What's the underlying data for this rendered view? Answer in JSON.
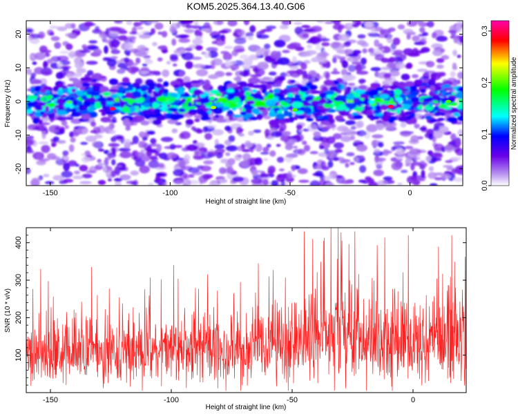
{
  "title": "KOM5.2025.364.13.40.G06",
  "chart_data": [
    {
      "type": "heatmap",
      "title": "KOM5.2025.364.13.40.G06",
      "xlabel": "Height of straight line (km)",
      "ylabel": "Frequency (Hz)",
      "xlim": [
        -160,
        22
      ],
      "ylim": [
        -25,
        24
      ],
      "xticks": [
        -150,
        -100,
        -50,
        0
      ],
      "yticks": [
        -20,
        -10,
        0,
        10,
        20
      ],
      "xtick_labels": [
        "-150",
        "-100",
        "-50",
        "0"
      ],
      "ytick_labels": [
        "-20",
        "-10",
        "0",
        "10",
        "20"
      ],
      "band_center_hz": 0,
      "band_halfwidth_hz": 5,
      "peaks": [
        {
          "x_km": -124,
          "y_hz": -2.2,
          "amplitude": 0.3
        },
        {
          "x_km": -8,
          "y_hz": -1.5,
          "amplitude": 0.3
        },
        {
          "x_km": -82,
          "y_hz": -1.8,
          "amplitude": 0.22
        },
        {
          "x_km": -48,
          "y_hz": -2.5,
          "amplitude": 0.2
        },
        {
          "x_km": 16,
          "y_hz": 0.0,
          "amplitude": 0.2
        }
      ],
      "colorbar": {
        "label": "Normalized spectral amplitude",
        "range": [
          0.0,
          0.32
        ],
        "ticks": [
          0.0,
          0.1,
          0.2,
          0.3
        ],
        "tick_labels": [
          "0.0",
          "0.1",
          "0.2",
          "0.3"
        ],
        "colors": [
          "#ffffff",
          "#b894f0",
          "#6a00e8",
          "#0000ff",
          "#00ffff",
          "#00ff00",
          "#ffff00",
          "#ff0000",
          "#ff00aa"
        ]
      }
    },
    {
      "type": "line",
      "xlabel": "Height of straight line (km)",
      "ylabel": "SNR (10 * v/v)",
      "xlim": [
        -160,
        22
      ],
      "ylim": [
        0,
        440
      ],
      "xticks": [
        -150,
        -100,
        -50,
        0
      ],
      "yticks": [
        100,
        200,
        300,
        400
      ],
      "xtick_labels": [
        "-150",
        "-100",
        "-50",
        "0"
      ],
      "ytick_labels": [
        "100",
        "200",
        "300",
        "400"
      ],
      "series": [
        {
          "name": "SNR",
          "color": "#ff2020",
          "x": [
            -158,
            -150,
            -140,
            -130,
            -120,
            -110,
            -100,
            -90,
            -80,
            -70,
            -60,
            -50,
            -47,
            -40,
            -30,
            -20,
            -10,
            0,
            10,
            20
          ],
          "mean": [
            105,
            110,
            110,
            110,
            112,
            115,
            118,
            118,
            115,
            115,
            118,
            120,
            140,
            155,
            155,
            150,
            140,
            135,
            140,
            145
          ],
          "spread": [
            70,
            75,
            75,
            75,
            75,
            80,
            80,
            80,
            80,
            80,
            85,
            90,
            100,
            110,
            115,
            110,
            105,
            100,
            100,
            105
          ]
        }
      ],
      "notable_peaks": [
        {
          "x": -154,
          "y": 330
        },
        {
          "x": -133,
          "y": 335
        },
        {
          "x": -99,
          "y": 340
        },
        {
          "x": -64,
          "y": 345
        },
        {
          "x": -45,
          "y": 430
        },
        {
          "x": -34,
          "y": 440
        },
        {
          "x": -31,
          "y": 440
        },
        {
          "x": -24,
          "y": 430
        },
        {
          "x": -2,
          "y": 420
        },
        {
          "x": 16,
          "y": 420
        }
      ]
    }
  ]
}
